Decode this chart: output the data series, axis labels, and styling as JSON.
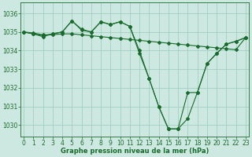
{
  "xlabel": "Graphe pression niveau de la mer (hPa)",
  "ylim": [
    1029.4,
    1036.6
  ],
  "xlim": [
    -0.3,
    23.3
  ],
  "yticks": [
    1030,
    1031,
    1032,
    1033,
    1034,
    1035,
    1036
  ],
  "xticks": [
    0,
    1,
    2,
    3,
    4,
    5,
    6,
    7,
    8,
    9,
    10,
    11,
    12,
    13,
    14,
    15,
    16,
    17,
    18,
    19,
    20,
    21,
    22,
    23
  ],
  "background_color": "#cce8e0",
  "grid_color": "#99ccbb",
  "line_color": "#1a6b2e",
  "series1_y": [
    1035.0,
    1034.95,
    1034.85,
    1034.85,
    1034.9,
    1034.9,
    1034.85,
    1034.8,
    1034.75,
    1034.7,
    1034.65,
    1034.6,
    1034.55,
    1034.5,
    1034.45,
    1034.4,
    1034.35,
    1034.3,
    1034.25,
    1034.2,
    1034.15,
    1034.1,
    1034.05,
    1034.7
  ],
  "series2_y": [
    1035.0,
    1034.9,
    1034.8,
    1034.9,
    1035.0,
    1035.6,
    1035.1,
    1035.0,
    1035.55,
    1035.4,
    1035.55,
    1035.3,
    1034.0,
    1032.5,
    1031.0,
    1029.8,
    1029.8,
    1031.75,
    1031.75,
    1033.3,
    1033.85,
    1034.35,
    1034.5,
    1034.7
  ],
  "series3_y": [
    1035.0,
    1034.9,
    1034.75,
    1034.9,
    1035.0,
    1035.6,
    1035.15,
    1035.0,
    1035.55,
    1035.4,
    1035.55,
    1035.3,
    1033.85,
    1032.5,
    1031.0,
    1029.8,
    1029.8,
    1030.35,
    1031.75,
    1033.3,
    1033.85,
    1034.35,
    1034.5,
    1034.7
  ],
  "tick_fontsize": 5.5,
  "label_fontsize": 6.0
}
